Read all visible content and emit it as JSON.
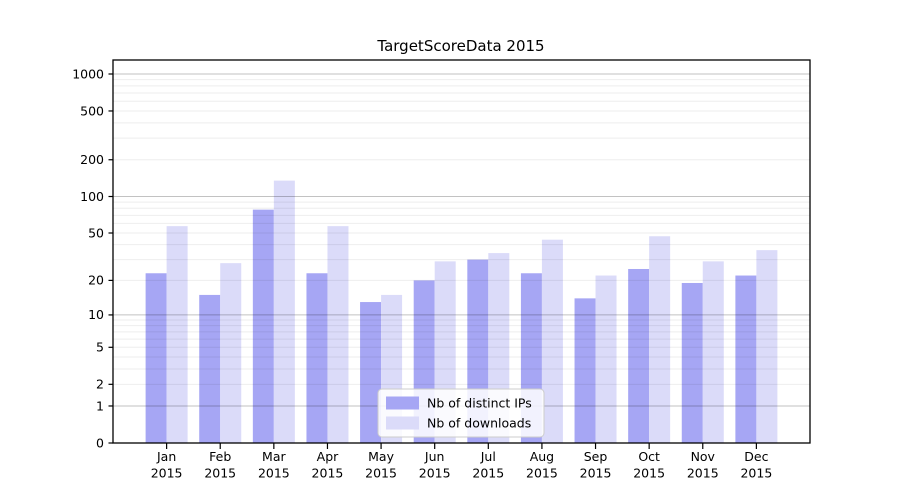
{
  "figure": {
    "background": "#ffffff"
  },
  "chart_data": {
    "type": "bar",
    "title": "TargetScoreData 2015",
    "categories": [
      "Jan",
      "Feb",
      "Mar",
      "Apr",
      "May",
      "Jun",
      "Jul",
      "Aug",
      "Sep",
      "Oct",
      "Nov",
      "Dec"
    ],
    "category_year": "2015",
    "series": [
      {
        "name": "Nb of distinct IPs",
        "color": "#a6a6f4",
        "values": [
          23,
          15,
          78,
          23,
          13,
          20,
          30,
          23,
          14,
          25,
          19,
          22
        ]
      },
      {
        "name": "Nb of downloads",
        "color": "#dbdbf9",
        "values": [
          57,
          28,
          135,
          57,
          15,
          29,
          34,
          44,
          22,
          47,
          29,
          36
        ]
      }
    ],
    "xlabel": "",
    "ylabel": "",
    "scale": "log1p",
    "ylim": [
      0,
      1300
    ],
    "y_ticks": [
      1000,
      500,
      200,
      100,
      50,
      20,
      10,
      5,
      2,
      1,
      0
    ],
    "grid": "on",
    "grid_major_decades": [
      1,
      10,
      100,
      1000
    ],
    "legend_position": "inside-bottom-center",
    "colors": {
      "major_grid": "rgba(0,0,0,0.24)",
      "minor_grid": "rgba(0,0,0,0.07)",
      "axis": "#000000"
    }
  }
}
